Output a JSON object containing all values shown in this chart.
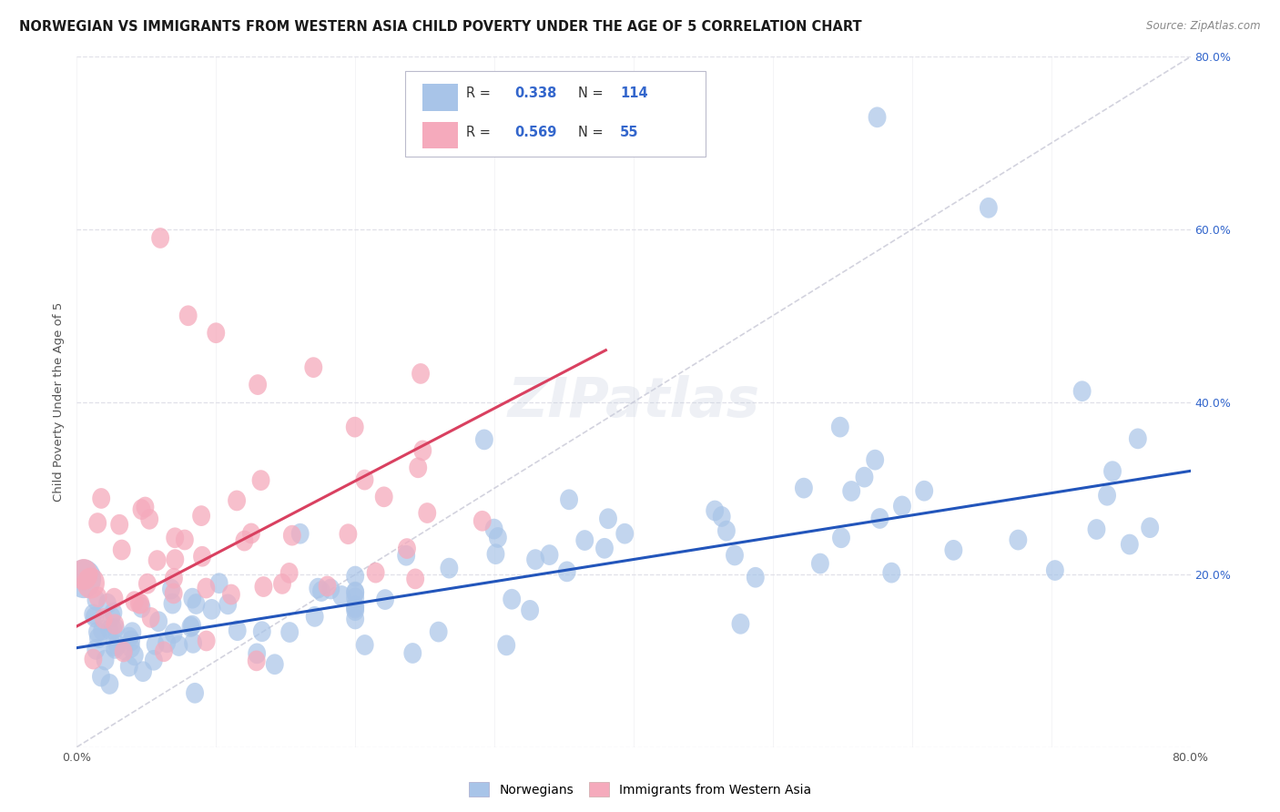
{
  "title": "NORWEGIAN VS IMMIGRANTS FROM WESTERN ASIA CHILD POVERTY UNDER THE AGE OF 5 CORRELATION CHART",
  "source": "Source: ZipAtlas.com",
  "ylabel": "Child Poverty Under the Age of 5",
  "xlim": [
    0.0,
    0.8
  ],
  "ylim": [
    0.0,
    0.8
  ],
  "xticks": [
    0.0,
    0.1,
    0.2,
    0.3,
    0.4,
    0.5,
    0.6,
    0.7,
    0.8
  ],
  "yticks": [
    0.0,
    0.2,
    0.4,
    0.6,
    0.8
  ],
  "xtick_labels_show": [
    "0.0%",
    "80.0%"
  ],
  "ytick_labels": [
    "",
    "20.0%",
    "40.0%",
    "60.0%",
    "80.0%"
  ],
  "blue_R": 0.338,
  "blue_N": 114,
  "pink_R": 0.569,
  "pink_N": 55,
  "blue_color": "#a8c4e8",
  "pink_color": "#f5aabc",
  "blue_line_color": "#2255bb",
  "pink_line_color": "#d94060",
  "diag_color": "#c0c0d0",
  "background_color": "#ffffff",
  "grid_color": "#e0e0e8",
  "legend_blue_label": "Norwegians",
  "legend_pink_label": "Immigrants from Western Asia",
  "blue_line_x0": 0.0,
  "blue_line_y0": 0.115,
  "blue_line_x1": 0.8,
  "blue_line_y1": 0.32,
  "pink_line_x0": 0.0,
  "pink_line_y0": 0.14,
  "pink_line_x1": 0.38,
  "pink_line_y1": 0.46,
  "title_fontsize": 10.5,
  "source_fontsize": 8.5,
  "axis_label_fontsize": 9.5,
  "tick_fontsize": 9,
  "legend_fontsize": 10.5
}
